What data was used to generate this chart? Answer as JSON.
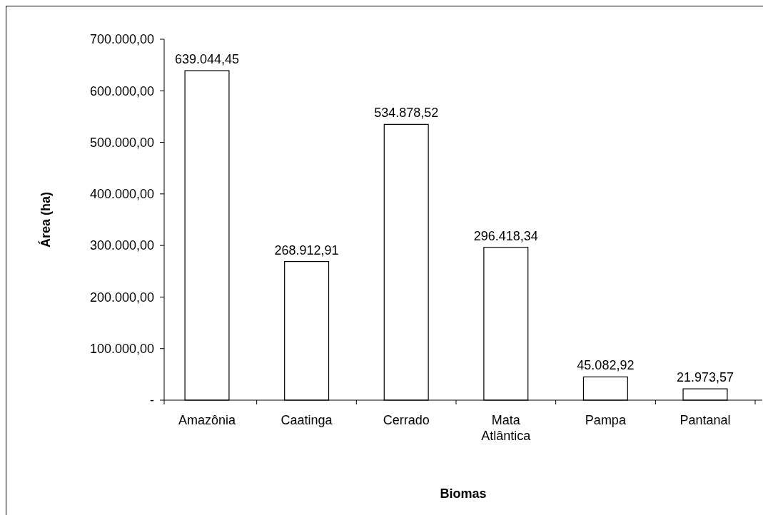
{
  "chart_data": {
    "type": "bar",
    "xlabel": "Biomas",
    "ylabel": "Área (ha)",
    "categories": [
      "Amazônia",
      "Caatinga",
      "Cerrado",
      "Mata Atlântica",
      "Pampa",
      "Pantanal"
    ],
    "values": [
      639044.45,
      268912.91,
      534878.52,
      296418.34,
      45082.92,
      21973.57
    ],
    "value_labels": [
      "639.044,45",
      "268.912,91",
      "534.878,52",
      "296.418,34",
      "45.082,92",
      "21.973,57"
    ],
    "color": "#ffffff",
    "ylim": [
      0,
      700000
    ],
    "yticks": [
      {
        "value": 0,
        "label": "-"
      },
      {
        "value": 100000,
        "label": "100.000,00"
      },
      {
        "value": 200000,
        "label": "200.000,00"
      },
      {
        "value": 300000,
        "label": "300.000,00"
      },
      {
        "value": 400000,
        "label": "400.000,00"
      },
      {
        "value": 500000,
        "label": "500.000,00"
      },
      {
        "value": 600000,
        "label": "600.000,00"
      },
      {
        "value": 700000,
        "label": "700.000,00"
      }
    ],
    "grid": false
  }
}
